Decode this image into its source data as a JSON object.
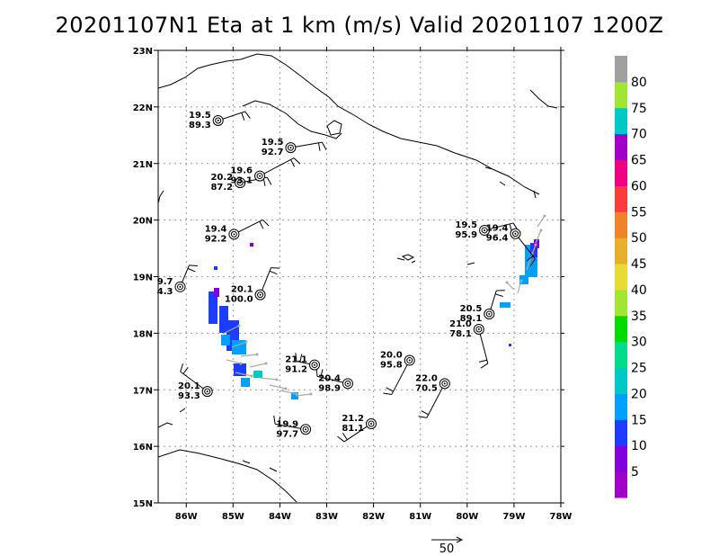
{
  "title": "20201107N1 Eta at 1 km (m/s) Valid 20201107 1200Z",
  "lat_axis": {
    "min": 15,
    "max": 23,
    "ticks": [
      {
        "v": 15,
        "label": "15N"
      },
      {
        "v": 16,
        "label": "16N"
      },
      {
        "v": 17,
        "label": "17N"
      },
      {
        "v": 18,
        "label": "18N"
      },
      {
        "v": 19,
        "label": "19N"
      },
      {
        "v": 20,
        "label": "20N"
      },
      {
        "v": 21,
        "label": "21N"
      },
      {
        "v": 22,
        "label": "22N"
      },
      {
        "v": 23,
        "label": "23N"
      }
    ]
  },
  "lon_axis": {
    "min": -86.6,
    "max": -78,
    "ticks": [
      {
        "v": -86,
        "label": "86W"
      },
      {
        "v": -85,
        "label": "85W"
      },
      {
        "v": -84,
        "label": "84W"
      },
      {
        "v": -83,
        "label": "83W"
      },
      {
        "v": -82,
        "label": "82W"
      },
      {
        "v": -81,
        "label": "81W"
      },
      {
        "v": -80,
        "label": "80W"
      },
      {
        "v": -79,
        "label": "79W"
      },
      {
        "v": -78,
        "label": "78W"
      }
    ]
  },
  "colorbar": {
    "colors": [
      "#a000c8",
      "#8200dc",
      "#1e3cff",
      "#00a0ff",
      "#00c8c8",
      "#00dc8c",
      "#00dc00",
      "#a0e632",
      "#e6dc32",
      "#e6af2d",
      "#f08228",
      "#fa3c3c",
      "#f00082",
      "#a000c8",
      "#00c8c8",
      "#a0e632",
      "#a0a0a0"
    ],
    "labels": [
      "5",
      "10",
      "15",
      "20",
      "25",
      "30",
      "35",
      "40",
      "45",
      "50",
      "55",
      "60",
      "65",
      "70",
      "75",
      "80"
    ]
  },
  "stations": [
    {
      "lat": 21.76,
      "lon": -85.32,
      "t": "19.5",
      "b": "89.3"
    },
    {
      "lat": 21.28,
      "lon": -83.77,
      "t": "19.5",
      "b": "92.7"
    },
    {
      "lat": 20.66,
      "lon": -84.85,
      "t": "20.2",
      "b": "87.2"
    },
    {
      "lat": 20.78,
      "lon": -84.43,
      "t": "19.6",
      "b": "93.1"
    },
    {
      "lat": 19.75,
      "lon": -84.98,
      "t": "19.4",
      "b": "92.2"
    },
    {
      "lat": 18.82,
      "lon": -86.13,
      "t": "9.7",
      "b": "4.3"
    },
    {
      "lat": 18.68,
      "lon": -84.42,
      "t": "20.1",
      "b": "100.0"
    },
    {
      "lat": 19.82,
      "lon": -79.63,
      "t": "19.5",
      "b": "95.9"
    },
    {
      "lat": 19.76,
      "lon": -78.97,
      "t": "19.4",
      "b": "96.4"
    },
    {
      "lat": 18.34,
      "lon": -79.53,
      "t": "20.5",
      "b": "89.1"
    },
    {
      "lat": 18.07,
      "lon": -79.75,
      "t": "21.0",
      "b": "78.1"
    },
    {
      "lat": 17.44,
      "lon": -83.26,
      "t": "21.1",
      "b": "91.2"
    },
    {
      "lat": 17.52,
      "lon": -81.23,
      "t": "20.0",
      "b": "95.8"
    },
    {
      "lat": 17.11,
      "lon": -82.55,
      "t": "20.4",
      "b": "98.9"
    },
    {
      "lat": 17.11,
      "lon": -80.48,
      "t": "22.0",
      "b": "70.5"
    },
    {
      "lat": 16.97,
      "lon": -85.55,
      "t": "20.1",
      "b": "93.3"
    },
    {
      "lat": 16.3,
      "lon": -83.45,
      "t": "19.9",
      "b": "97.7"
    },
    {
      "lat": 16.4,
      "lon": -82.05,
      "t": "21.2",
      "b": "81.1"
    }
  ],
  "ref_vector_label": "50"
}
